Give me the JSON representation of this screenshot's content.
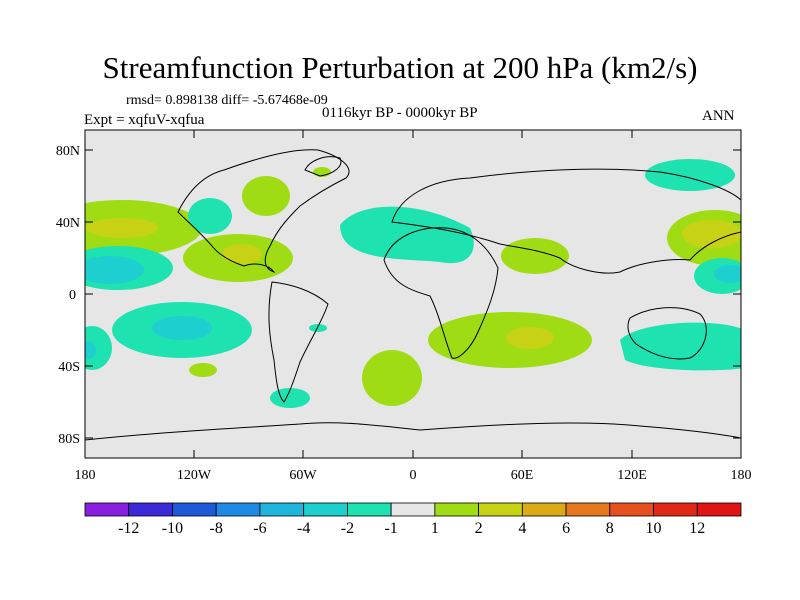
{
  "title": "Streamfunction Perturbation at 200 hPa (km2/s)",
  "stats": "rmsd= 0.898138  diff= -5.67468e-09",
  "period": "0116kyr BP - 0000kyr BP",
  "experiment": "Expt = xqfuV-xqfua",
  "season": "ANN",
  "y_axis_labels": [
    "80N",
    "40N",
    "0",
    "40S",
    "80S"
  ],
  "x_axis_labels": [
    "180",
    "120W",
    "60W",
    "0",
    "60E",
    "120E",
    "180"
  ],
  "colorbar": {
    "labels": [
      "-12",
      "-10",
      "-8",
      "-6",
      "-4",
      "-2",
      "-1",
      "1",
      "2",
      "4",
      "6",
      "8",
      "10",
      "12"
    ],
    "colors": [
      "#8a1ee0",
      "#3c2ad8",
      "#1e5ad8",
      "#1e8ae6",
      "#1eb4dc",
      "#1ecfd0",
      "#1ee3b0",
      "#e6e6e6",
      "#a0dc14",
      "#c8d214",
      "#dcaa14",
      "#e6781e",
      "#e6501e",
      "#e02814",
      "#e01414"
    ]
  },
  "map_colors": {
    "background": "#e6e6e6",
    "coast": "#000000"
  }
}
